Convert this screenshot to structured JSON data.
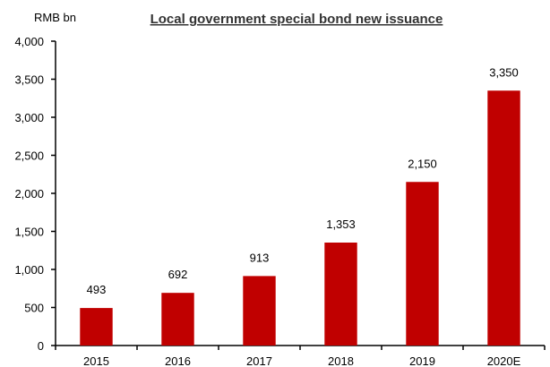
{
  "chart_data": {
    "type": "bar",
    "title": "Local government special bond new issuance",
    "ylabel": "RMB bn",
    "xlabel": "",
    "categories": [
      "2015",
      "2016",
      "2017",
      "2018",
      "2019",
      "2020E"
    ],
    "values": [
      493,
      692,
      913,
      1353,
      2150,
      3350
    ],
    "data_labels": [
      "493",
      "692",
      "913",
      "1,353",
      "2,150",
      "3,350"
    ],
    "ylim": [
      0,
      4000
    ],
    "y_ticks": [
      0,
      500,
      1000,
      1500,
      2000,
      2500,
      3000,
      3500,
      4000
    ],
    "y_tick_labels": [
      "0",
      "500",
      "1,000",
      "1,500",
      "2,000",
      "2,500",
      "3,000",
      "3,500",
      "4,000"
    ],
    "bar_color": "#C00000",
    "grid": false,
    "legend": "none"
  }
}
